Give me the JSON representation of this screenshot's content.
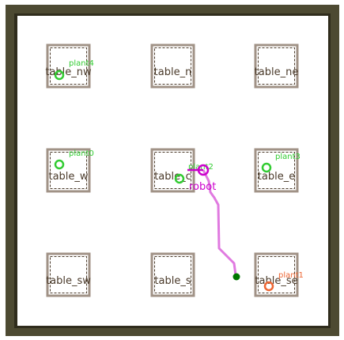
{
  "colors": {
    "wall": "#4d4a32",
    "wall_inner": "#2f2c1c",
    "floor": "#ffffff",
    "table_outer": "#a09286",
    "table_inner": "#4a3a2a",
    "plant_healthy": "#33cc33",
    "plant_wilted": "#ee6633",
    "robot": "#cc00cc",
    "path": "#e07ae0",
    "goal": "#007700"
  },
  "tables": [
    {
      "id": "nw",
      "label": "table_nw"
    },
    {
      "id": "n",
      "label": "table_n"
    },
    {
      "id": "ne",
      "label": "table_ne"
    },
    {
      "id": "w",
      "label": "table_w"
    },
    {
      "id": "c",
      "label": "table_c"
    },
    {
      "id": "e",
      "label": "table_e"
    },
    {
      "id": "sw",
      "label": "table_sw"
    },
    {
      "id": "s",
      "label": "table_s"
    },
    {
      "id": "se",
      "label": "table_se"
    }
  ],
  "plants": [
    {
      "id": "plant4",
      "label": "plant4",
      "state": "healthy"
    },
    {
      "id": "plant0",
      "label": "plant0",
      "state": "healthy"
    },
    {
      "id": "plant2",
      "label": "plant2",
      "state": "healthy"
    },
    {
      "id": "plant3",
      "label": "plant3",
      "state": "healthy"
    },
    {
      "id": "plant1",
      "label": "plant1",
      "state": "wilted"
    }
  ],
  "robot": {
    "label": "robot"
  }
}
